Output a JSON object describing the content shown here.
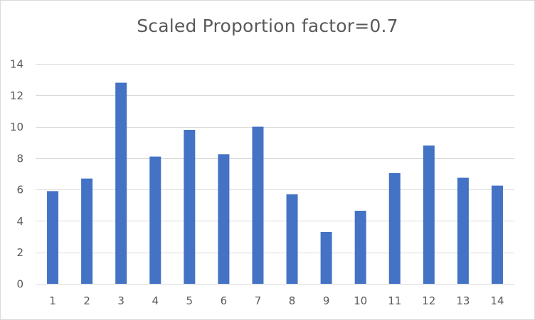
{
  "chart_data": {
    "type": "bar",
    "title": "Scaled Proportion factor=0.7",
    "xlabel": "",
    "ylabel": "",
    "categories": [
      "1",
      "2",
      "3",
      "4",
      "5",
      "6",
      "7",
      "8",
      "9",
      "10",
      "11",
      "12",
      "13",
      "14"
    ],
    "values": [
      5.9,
      6.7,
      12.8,
      8.1,
      9.8,
      8.25,
      10.0,
      5.7,
      3.3,
      4.65,
      7.05,
      8.8,
      6.75,
      6.25
    ],
    "ylim": [
      0,
      14
    ],
    "yticks": [
      0,
      2,
      4,
      6,
      8,
      10,
      12,
      14
    ],
    "grid": true,
    "legend": "none",
    "bar_color": "#4472c4",
    "grid_color": "#d9d9d9",
    "text_color": "#595959"
  }
}
